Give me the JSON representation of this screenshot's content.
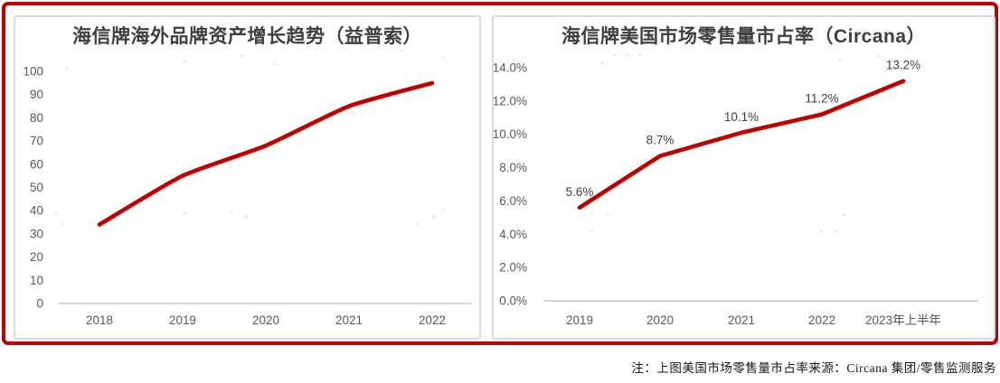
{
  "frame": {
    "border_color": "#c00000"
  },
  "note": "注：上图美国市场零售量市占率来源：Circana 集团/零售监测服务",
  "colors": {
    "line": "#c00000",
    "title": "#3f3f3f",
    "tick": "#595959",
    "axis": "#c9c9c9",
    "data_label": "#404040",
    "panel_border": "#d9d9d9",
    "watermark_dot": "#e9e9e9"
  },
  "chart_data": [
    {
      "type": "line",
      "title": "海信牌海外品牌资产增长趋势（益普索）",
      "categories": [
        "2018",
        "2019",
        "2020",
        "2021",
        "2022"
      ],
      "values": [
        34,
        55,
        68,
        85,
        95
      ],
      "ylim": [
        0,
        100
      ],
      "ytick_values": [
        100,
        90,
        80,
        70,
        60,
        50,
        40,
        30,
        20,
        10,
        0
      ],
      "ytick_labels": [
        "100",
        "90",
        "80",
        "70",
        "60",
        "50",
        "40",
        "30",
        "20",
        "10",
        "0"
      ],
      "grid": false,
      "legend": "none",
      "line_color": "#c00000",
      "smooth": true,
      "data_labels": null
    },
    {
      "type": "line",
      "title": "海信牌美国市场零售量市占率（Circana）",
      "categories": [
        "2019",
        "2020",
        "2021",
        "2022",
        "2023年上半年"
      ],
      "values": [
        5.6,
        8.7,
        10.1,
        11.2,
        13.2
      ],
      "ylim": [
        0,
        14
      ],
      "ytick_values": [
        14,
        12,
        10,
        8,
        6,
        4,
        2,
        0
      ],
      "ytick_labels": [
        "14.0%",
        "12.0%",
        "10.0%",
        "8.0%",
        "6.0%",
        "4.0%",
        "2.0%",
        "0.0%"
      ],
      "grid": false,
      "legend": "none",
      "line_color": "#c00000",
      "smooth": false,
      "data_labels": [
        "5.6%",
        "8.7%",
        "10.1%",
        "11.2%",
        "13.2%"
      ]
    }
  ]
}
